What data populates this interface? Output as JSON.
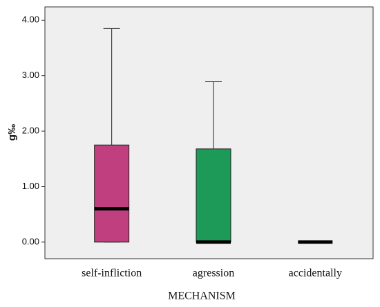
{
  "chart_data": {
    "type": "boxplot",
    "x_label": "MECHANISM",
    "y_label": "g‰",
    "categories": [
      "self-infliction",
      "agression",
      "accidentally"
    ],
    "boxes": [
      {
        "min": 0,
        "q1": 0,
        "median": 0.6,
        "q3": 1.75,
        "max": 3.85,
        "color": "#c0407f"
      },
      {
        "min": 0,
        "q1": 0,
        "median": 0,
        "q3": 1.68,
        "max": 2.89,
        "color": "#1e9a58"
      },
      {
        "min": 0,
        "q1": 0,
        "median": 0,
        "q3": 0,
        "max": 0
      }
    ],
    "ylim": [
      -0.3,
      4.24
    ],
    "yticks": [
      {
        "value": 0,
        "label": "0.00"
      },
      {
        "value": 1,
        "label": "1.00"
      },
      {
        "value": 2,
        "label": "2.00"
      },
      {
        "value": 3,
        "label": "3.00"
      },
      {
        "value": 4,
        "label": "4.00"
      }
    ],
    "grid": false
  }
}
